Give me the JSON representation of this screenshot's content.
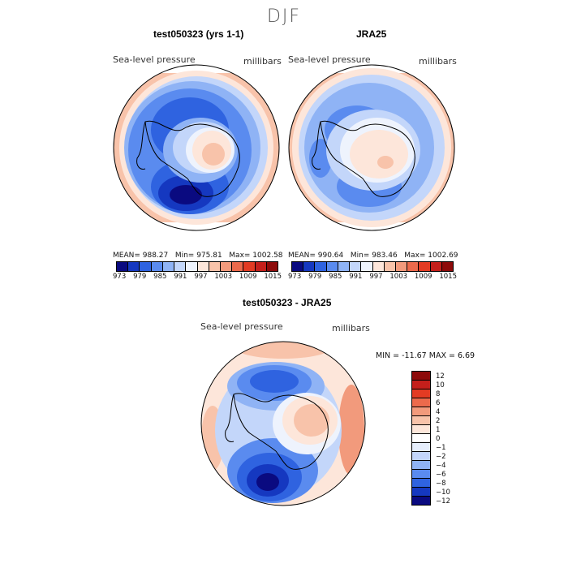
{
  "figure": {
    "season": "DJF"
  },
  "panel_left": {
    "title": "test050323 (yrs 1-1)",
    "variable": "Sea-level pressure",
    "units": "millibars",
    "stats": {
      "mean_label": "MEAN= 988.27",
      "min_label": "Min= 975.81",
      "max_label": "Max= 1002.58"
    },
    "colorbar_ticks": [
      "973",
      "979",
      "985",
      "991",
      "997",
      "1003",
      "1009",
      "1015"
    ]
  },
  "panel_right": {
    "title": "JRA25",
    "variable": "Sea-level pressure",
    "units": "millibars",
    "stats": {
      "mean_label": "MEAN= 990.64",
      "min_label": "Min= 983.46",
      "max_label": "Max= 1002.69"
    },
    "colorbar_ticks": [
      "973",
      "979",
      "985",
      "991",
      "997",
      "1003",
      "1009",
      "1015"
    ]
  },
  "panel_diff": {
    "title": "test050323 - JRA25",
    "variable": "Sea-level pressure",
    "units": "millibars",
    "minmax_label": "MIN = -11.67  MAX =    6.69",
    "colorbar_labels": [
      "12",
      "10",
      "8",
      "6",
      "4",
      "2",
      "1",
      "0",
      "−1",
      "−2",
      "−4",
      "−6",
      "−8",
      "−10",
      "−12"
    ]
  },
  "colors": {
    "abs_scale": [
      "#0a0a80",
      "#1538c0",
      "#2f63e0",
      "#5a8bef",
      "#8fb3f5",
      "#c3d6fa",
      "#eef3fd",
      "#fde6da",
      "#f8c3aa",
      "#f29a7c",
      "#ec6a4c",
      "#e33b23",
      "#c41f1b",
      "#8d0a0a"
    ],
    "diff_scale": [
      "#8d0a0a",
      "#c41f1b",
      "#e33b23",
      "#ec6a4c",
      "#f29a7c",
      "#f8c3aa",
      "#fde6da",
      "#ffffff",
      "#e6eefc",
      "#c3d6fa",
      "#8fb3f5",
      "#5a8bef",
      "#2f63e0",
      "#1538c0",
      "#0a0a80"
    ]
  }
}
